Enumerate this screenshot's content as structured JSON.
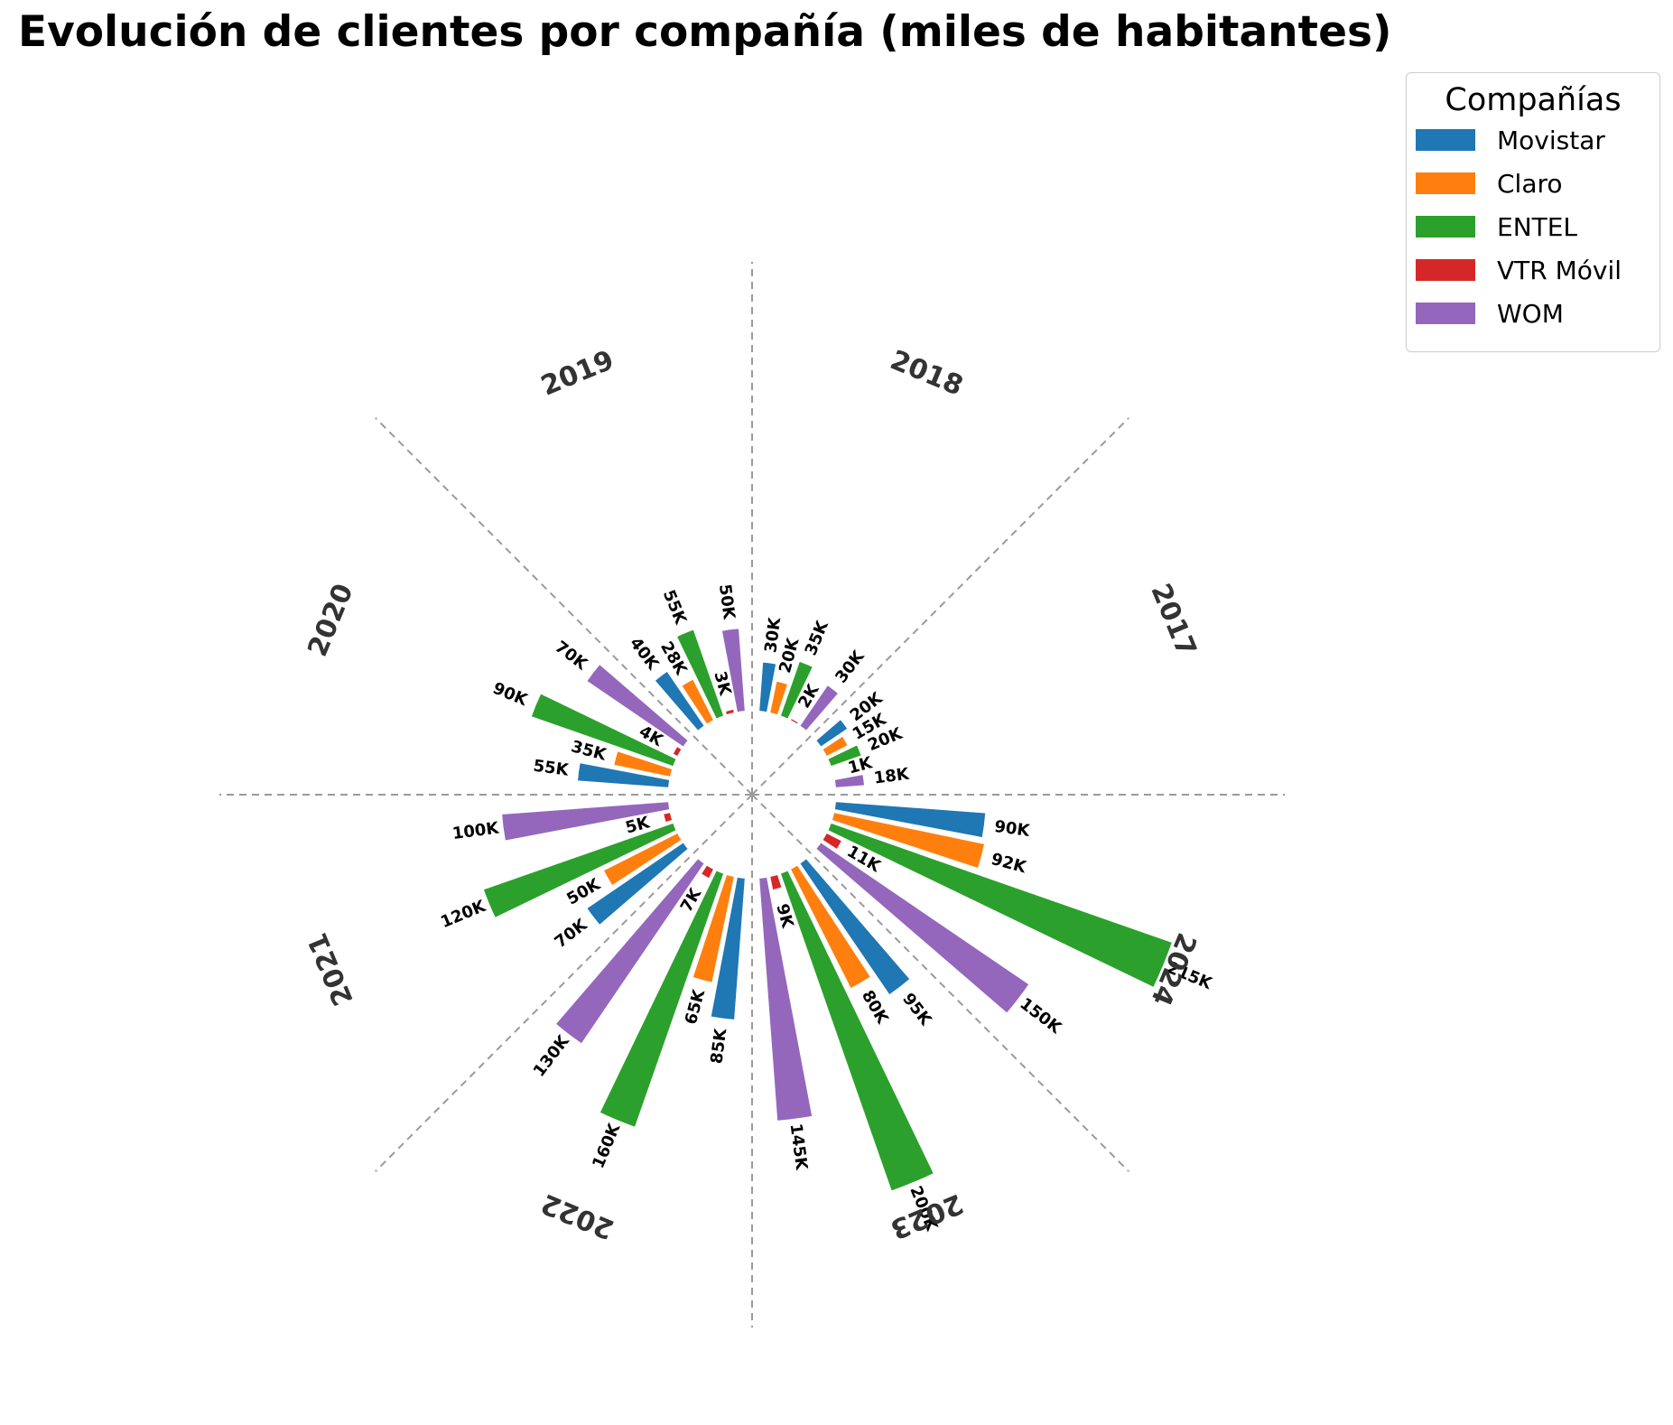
{
  "chart_data": {
    "type": "bar",
    "title": "Evolución de clientes por compañía (miles de habitantes)",
    "subtype": "polar-radial-bar",
    "legend": {
      "title": "Compañías",
      "placement": "top-right"
    },
    "categories": [
      "2017",
      "2018",
      "2019",
      "2020",
      "2021",
      "2022",
      "2023",
      "2024"
    ],
    "series": [
      {
        "name": "Movistar",
        "color": "#1f77b4",
        "values": [
          20,
          30,
          40,
          55,
          70,
          85,
          95,
          90
        ],
        "labels": [
          "20K",
          "30K",
          "40K",
          "55K",
          "70K",
          "85K",
          "95K",
          "90K"
        ]
      },
      {
        "name": "Claro",
        "color": "#ff7f0e",
        "values": [
          15,
          20,
          28,
          35,
          50,
          65,
          80,
          92
        ],
        "labels": [
          "15K",
          "20K",
          "28K",
          "35K",
          "50K",
          "65K",
          "80K",
          "92K"
        ]
      },
      {
        "name": "ENTEL",
        "color": "#2ca02c",
        "values": [
          20,
          35,
          55,
          90,
          120,
          160,
          200,
          215
        ],
        "labels": [
          "20K",
          "35K",
          "55K",
          "90K",
          "120K",
          "160K",
          "200K",
          "215K"
        ]
      },
      {
        "name": "VTR Móvil",
        "color": "#d62728",
        "values": [
          1,
          2,
          3,
          4,
          5,
          7,
          9,
          11
        ],
        "labels": [
          "1K",
          "2K",
          "3K",
          "4K",
          "5K",
          "7K",
          "9K",
          "11K"
        ]
      },
      {
        "name": "WOM",
        "color": "#9467bd",
        "values": [
          18,
          30,
          50,
          70,
          100,
          130,
          145,
          150
        ],
        "labels": [
          "18K",
          "30K",
          "50K",
          "70K",
          "100K",
          "130K",
          "145K",
          "150K"
        ]
      }
    ],
    "grid": false,
    "sector_dividers": "dashed"
  }
}
